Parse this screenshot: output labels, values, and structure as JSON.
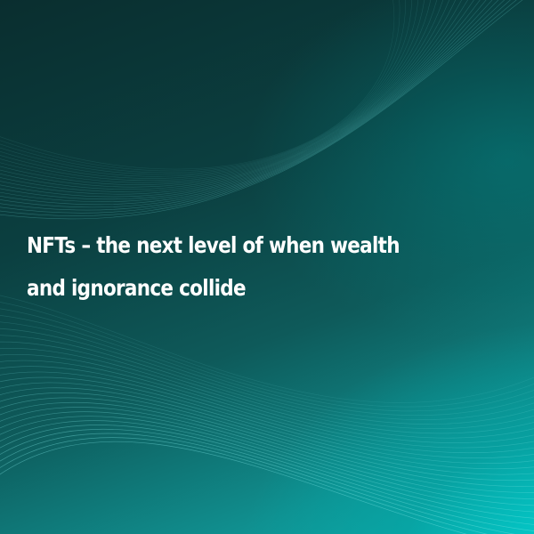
{
  "headline": {
    "text": "NFTs – the next level of when wealth and ignorance collide"
  },
  "background": {
    "base_color": "#0a2e2f",
    "accent_color": "#00d6d6",
    "wave_line_color": "#7fe8e6"
  }
}
